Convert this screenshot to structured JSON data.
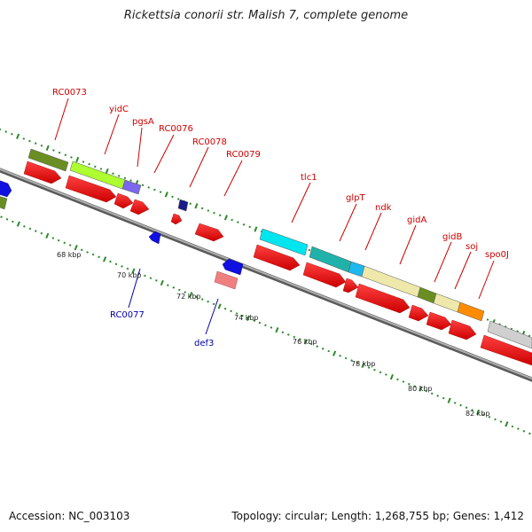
{
  "title": "Rickettsia conorii str. Malish 7, complete genome",
  "footer": {
    "accession": "Accession: NC_003103",
    "summary": "Topology: circular; Length: 1,268,755 bp; Genes: 1,412"
  },
  "colors": {
    "forward_label": "#cc0000",
    "reverse_label": "#0000aa",
    "dots": "#228b22",
    "backbone": "#8a8a8a"
  },
  "ticks": [
    "68 kbp",
    "70 kbp",
    "72 kbp",
    "74 kbp",
    "76 kbp",
    "78 kbp",
    "80 kbp",
    "82 kbp"
  ],
  "forward_labels": [
    "RC0073",
    "yidC",
    "pgsA",
    "RC0076",
    "RC0078",
    "RC0079",
    "tlc1",
    "glpT",
    "ndk",
    "gidA",
    "gidB",
    "soj",
    "spo0J"
  ],
  "reverse_labels": [
    "RC0077",
    "def3"
  ]
}
